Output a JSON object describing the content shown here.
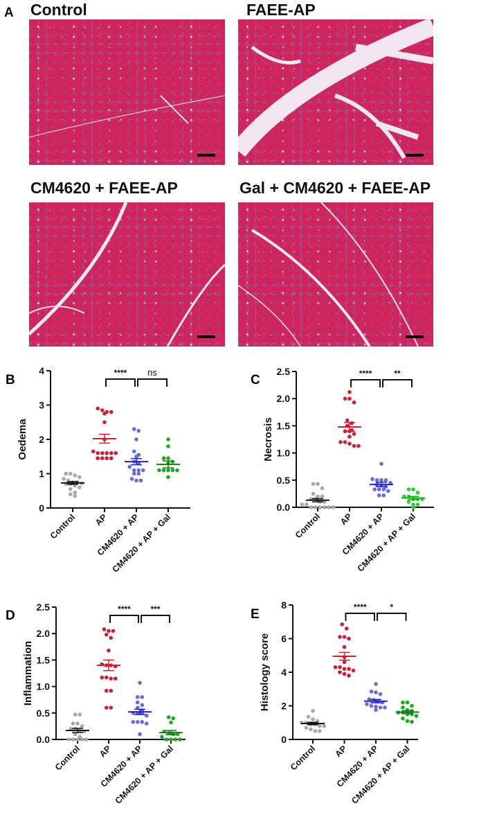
{
  "panel_a": {
    "letter": "A",
    "images": [
      {
        "title": "Control"
      },
      {
        "title": "FAEE-AP"
      },
      {
        "title": "CM4620 + FAEE-AP"
      },
      {
        "title": "Gal + CM4620 + FAEE-AP"
      }
    ]
  },
  "chart_data": [
    {
      "panel": "B",
      "type": "scatter",
      "title": "",
      "xlabel": "",
      "ylabel": "Oedema",
      "ylim": [
        0,
        4
      ],
      "yticks": [
        "0",
        "1",
        "2",
        "3",
        "4"
      ],
      "ytick_values": [
        0,
        1,
        2,
        3,
        4
      ],
      "categories": [
        "Control",
        "AP",
        "CM4620 + AP",
        "CM4620 + AP + Gal"
      ],
      "series": [
        {
          "values": [
            1.0,
            1.0,
            0.95,
            0.9,
            0.85,
            0.8,
            0.75,
            0.75,
            0.72,
            0.7,
            0.7,
            0.65,
            0.6,
            0.55,
            0.45,
            0.4,
            0.35
          ],
          "mean": 0.73,
          "sem": 0.04,
          "color": "#a8a8a8",
          "mean_color": "#111111"
        },
        {
          "values": [
            2.9,
            2.85,
            2.8,
            2.8,
            2.75,
            2.5,
            2.0,
            1.65,
            1.6,
            1.6,
            1.6,
            1.6,
            1.6,
            1.45,
            1.45,
            1.45,
            1.45
          ],
          "mean": 2.02,
          "sem": 0.13,
          "color": "#cc1f36",
          "mean_color": "#cc1f36"
        },
        {
          "values": [
            2.3,
            2.25,
            2.0,
            1.65,
            1.55,
            1.5,
            1.35,
            1.3,
            1.2,
            1.1,
            1.1,
            1.1,
            1.0,
            1.0,
            0.85,
            0.8,
            0.8
          ],
          "mean": 1.35,
          "sem": 0.09,
          "color": "#6b6bd8",
          "mean_color": "#1f1fc8"
        },
        {
          "values": [
            2.0,
            1.8,
            1.45,
            1.45,
            1.35,
            1.3,
            1.1,
            1.1,
            1.1,
            1.1,
            1.1,
            0.9
          ],
          "mean": 1.27,
          "sem": 0.1,
          "color": "#1ea81e",
          "mean_color": "#157a15"
        }
      ],
      "comparisons": [
        {
          "from": 1,
          "to": 2,
          "label": "****"
        },
        {
          "from": 2,
          "to": 3,
          "label": "ns"
        }
      ]
    },
    {
      "panel": "C",
      "type": "scatter",
      "title": "",
      "xlabel": "",
      "ylabel": "Necrosis",
      "ylim": [
        0,
        2.5
      ],
      "yticks": [
        "0.0",
        "0.5",
        "1.0",
        "1.5",
        "2.0",
        "2.5"
      ],
      "ytick_values": [
        0,
        0.5,
        1,
        1.5,
        2,
        2.5
      ],
      "categories": [
        "Control",
        "AP",
        "CM4620 + AP",
        "CM4620 + AP + Gal"
      ],
      "series": [
        {
          "values": [
            0.43,
            0.43,
            0.35,
            0.25,
            0.2,
            0.2,
            0.15,
            0.15,
            0.1,
            0.1,
            0.05,
            0.05,
            0,
            0,
            0,
            0,
            0,
            0
          ],
          "mean": 0.13,
          "sem": 0.03,
          "color": "#a8a8a8",
          "mean_color": "#111111"
        },
        {
          "values": [
            2.12,
            2.0,
            2.0,
            1.93,
            1.6,
            1.55,
            1.5,
            1.42,
            1.4,
            1.4,
            1.35,
            1.3,
            1.2,
            1.2,
            1.17,
            1.13,
            1.13
          ],
          "mean": 1.48,
          "sem": 0.08,
          "color": "#cc1f36",
          "mean_color": "#cc1f36"
        },
        {
          "values": [
            0.8,
            0.52,
            0.5,
            0.5,
            0.5,
            0.45,
            0.42,
            0.4,
            0.38,
            0.33,
            0.33,
            0.33,
            0.3,
            0.22,
            0.22
          ],
          "mean": 0.42,
          "sem": 0.04,
          "color": "#6b6bd8",
          "mean_color": "#1f1fc8"
        },
        {
          "values": [
            0.33,
            0.33,
            0.27,
            0.2,
            0.2,
            0.15,
            0.15,
            0.15,
            0.1,
            0.05,
            0.05,
            0
          ],
          "mean": 0.17,
          "sem": 0.03,
          "color": "#33cc33",
          "mean_color": "#1ea81e"
        }
      ],
      "comparisons": [
        {
          "from": 1,
          "to": 2,
          "label": "****"
        },
        {
          "from": 2,
          "to": 3,
          "label": "**"
        }
      ]
    },
    {
      "panel": "D",
      "type": "scatter",
      "title": "",
      "xlabel": "",
      "ylabel": "Inflammation",
      "ylim": [
        0,
        2.5
      ],
      "yticks": [
        "0.0",
        "0.5",
        "1.0",
        "1.5",
        "2.0",
        "2.5"
      ],
      "ytick_values": [
        0,
        0.5,
        1,
        1.5,
        2,
        2.5
      ],
      "categories": [
        "Control",
        "AP",
        "CM4620 + AP",
        "CM4620 + AP + Gal"
      ],
      "series": [
        {
          "values": [
            0.47,
            0.47,
            0.3,
            0.3,
            0.25,
            0.2,
            0.2,
            0.17,
            0.15,
            0.1,
            0.05,
            0,
            0,
            0,
            0,
            0
          ],
          "mean": 0.17,
          "sem": 0.04,
          "color": "#a8a8a8",
          "mean_color": "#111111"
        },
        {
          "values": [
            2.08,
            2.05,
            2.05,
            1.98,
            1.92,
            1.68,
            1.42,
            1.4,
            1.4,
            1.38,
            1.17,
            1.17,
            1.15,
            1.15,
            0.92,
            0.92,
            0.6,
            0.6
          ],
          "mean": 1.4,
          "sem": 0.1,
          "color": "#cc1f36",
          "mean_color": "#cc1f36"
        },
        {
          "values": [
            1.07,
            0.8,
            0.8,
            0.7,
            0.65,
            0.6,
            0.55,
            0.5,
            0.5,
            0.5,
            0.45,
            0.33,
            0.33,
            0.33,
            0.3,
            0.1
          ],
          "mean": 0.52,
          "sem": 0.05,
          "color": "#6b6bd8",
          "mean_color": "#1f1fc8"
        },
        {
          "values": [
            0.42,
            0.4,
            0.32,
            0.15,
            0.12,
            0.1,
            0.1,
            0.05,
            0,
            0,
            0,
            0
          ],
          "mean": 0.13,
          "sem": 0.04,
          "color": "#1ea81e",
          "mean_color": "#157a15"
        }
      ],
      "comparisons": [
        {
          "from": 1,
          "to": 2,
          "label": "****"
        },
        {
          "from": 2,
          "to": 3,
          "label": "***"
        }
      ]
    },
    {
      "panel": "E",
      "type": "scatter",
      "title": "",
      "xlabel": "",
      "ylabel": "Histology score",
      "ylim": [
        0,
        8
      ],
      "yticks": [
        "0",
        "2",
        "4",
        "6",
        "8"
      ],
      "ytick_values": [
        0,
        2,
        4,
        6,
        8
      ],
      "categories": [
        "Control",
        "AP",
        "CM4620 + AP",
        "CM4620 + AP + Gal"
      ],
      "series": [
        {
          "values": [
            1.7,
            1.35,
            1.2,
            1.1,
            1.0,
            1.0,
            0.9,
            0.9,
            0.8,
            0.8,
            0.7,
            0.6,
            0.5,
            0.5
          ],
          "mean": 0.95,
          "sem": 0.07,
          "color": "#a8a8a8",
          "mean_color": "#111111"
        },
        {
          "values": [
            6.85,
            6.6,
            6.1,
            6.1,
            6.0,
            5.5,
            4.9,
            4.6,
            4.3,
            4.3,
            4.2,
            4.2,
            4.1,
            4.0,
            3.9,
            3.8
          ],
          "mean": 4.95,
          "sem": 0.23,
          "color": "#cc1f36",
          "mean_color": "#cc1f36"
        },
        {
          "values": [
            3.3,
            2.85,
            2.8,
            2.7,
            2.4,
            2.35,
            2.3,
            2.2,
            2.1,
            2.0,
            1.95,
            1.9,
            1.9,
            1.75
          ],
          "mean": 2.28,
          "sem": 0.1,
          "color": "#6b6bd8",
          "mean_color": "#1f1fc8"
        },
        {
          "values": [
            2.2,
            2.2,
            2.0,
            1.9,
            1.75,
            1.7,
            1.6,
            1.6,
            1.5,
            1.5,
            1.4,
            1.25,
            1.1,
            1.05
          ],
          "mean": 1.63,
          "sem": 0.08,
          "color": "#1ea81e",
          "mean_color": "#157a15"
        }
      ],
      "comparisons": [
        {
          "from": 1,
          "to": 2,
          "label": "****"
        },
        {
          "from": 2,
          "to": 3,
          "label": "*"
        }
      ]
    }
  ]
}
